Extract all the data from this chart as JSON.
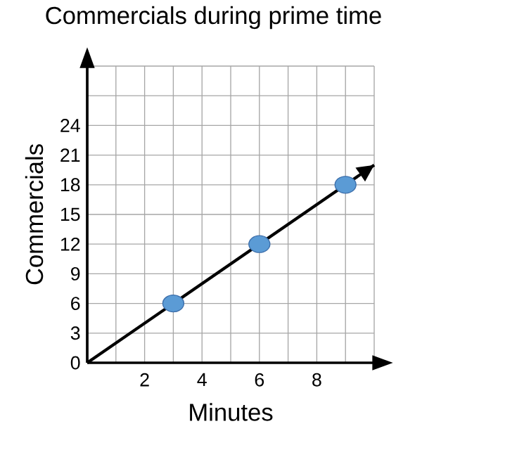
{
  "chart_data": {
    "type": "line",
    "title": "Commercials during prime time",
    "xlabel": "Minutes",
    "ylabel": "Commercials",
    "series": [
      {
        "color": "#000000",
        "x": [
          0,
          10
        ],
        "values": [
          0,
          20
        ],
        "marker": "none",
        "line_style": "solid"
      },
      {
        "type": "scatter",
        "color": "#5b9bd5",
        "x": [
          3,
          6,
          9
        ],
        "values": [
          6,
          12,
          18
        ],
        "marker": "circle"
      }
    ],
    "xlim": [
      0,
      10
    ],
    "ylim": [
      0,
      30
    ],
    "xticks": [
      {
        "value": 1,
        "label": null
      },
      2,
      {
        "value": 3,
        "label": null
      },
      4,
      {
        "value": 5,
        "label": null
      },
      6,
      {
        "value": 7,
        "label": null
      },
      8,
      {
        "value": 9,
        "label": null
      },
      {
        "value": 10,
        "label": null
      }
    ],
    "yticks": [
      0,
      3,
      6,
      9,
      12,
      15,
      18,
      21,
      24,
      {
        "value": 27,
        "label": null
      },
      {
        "value": 30,
        "label": null
      }
    ],
    "grid": true
  }
}
